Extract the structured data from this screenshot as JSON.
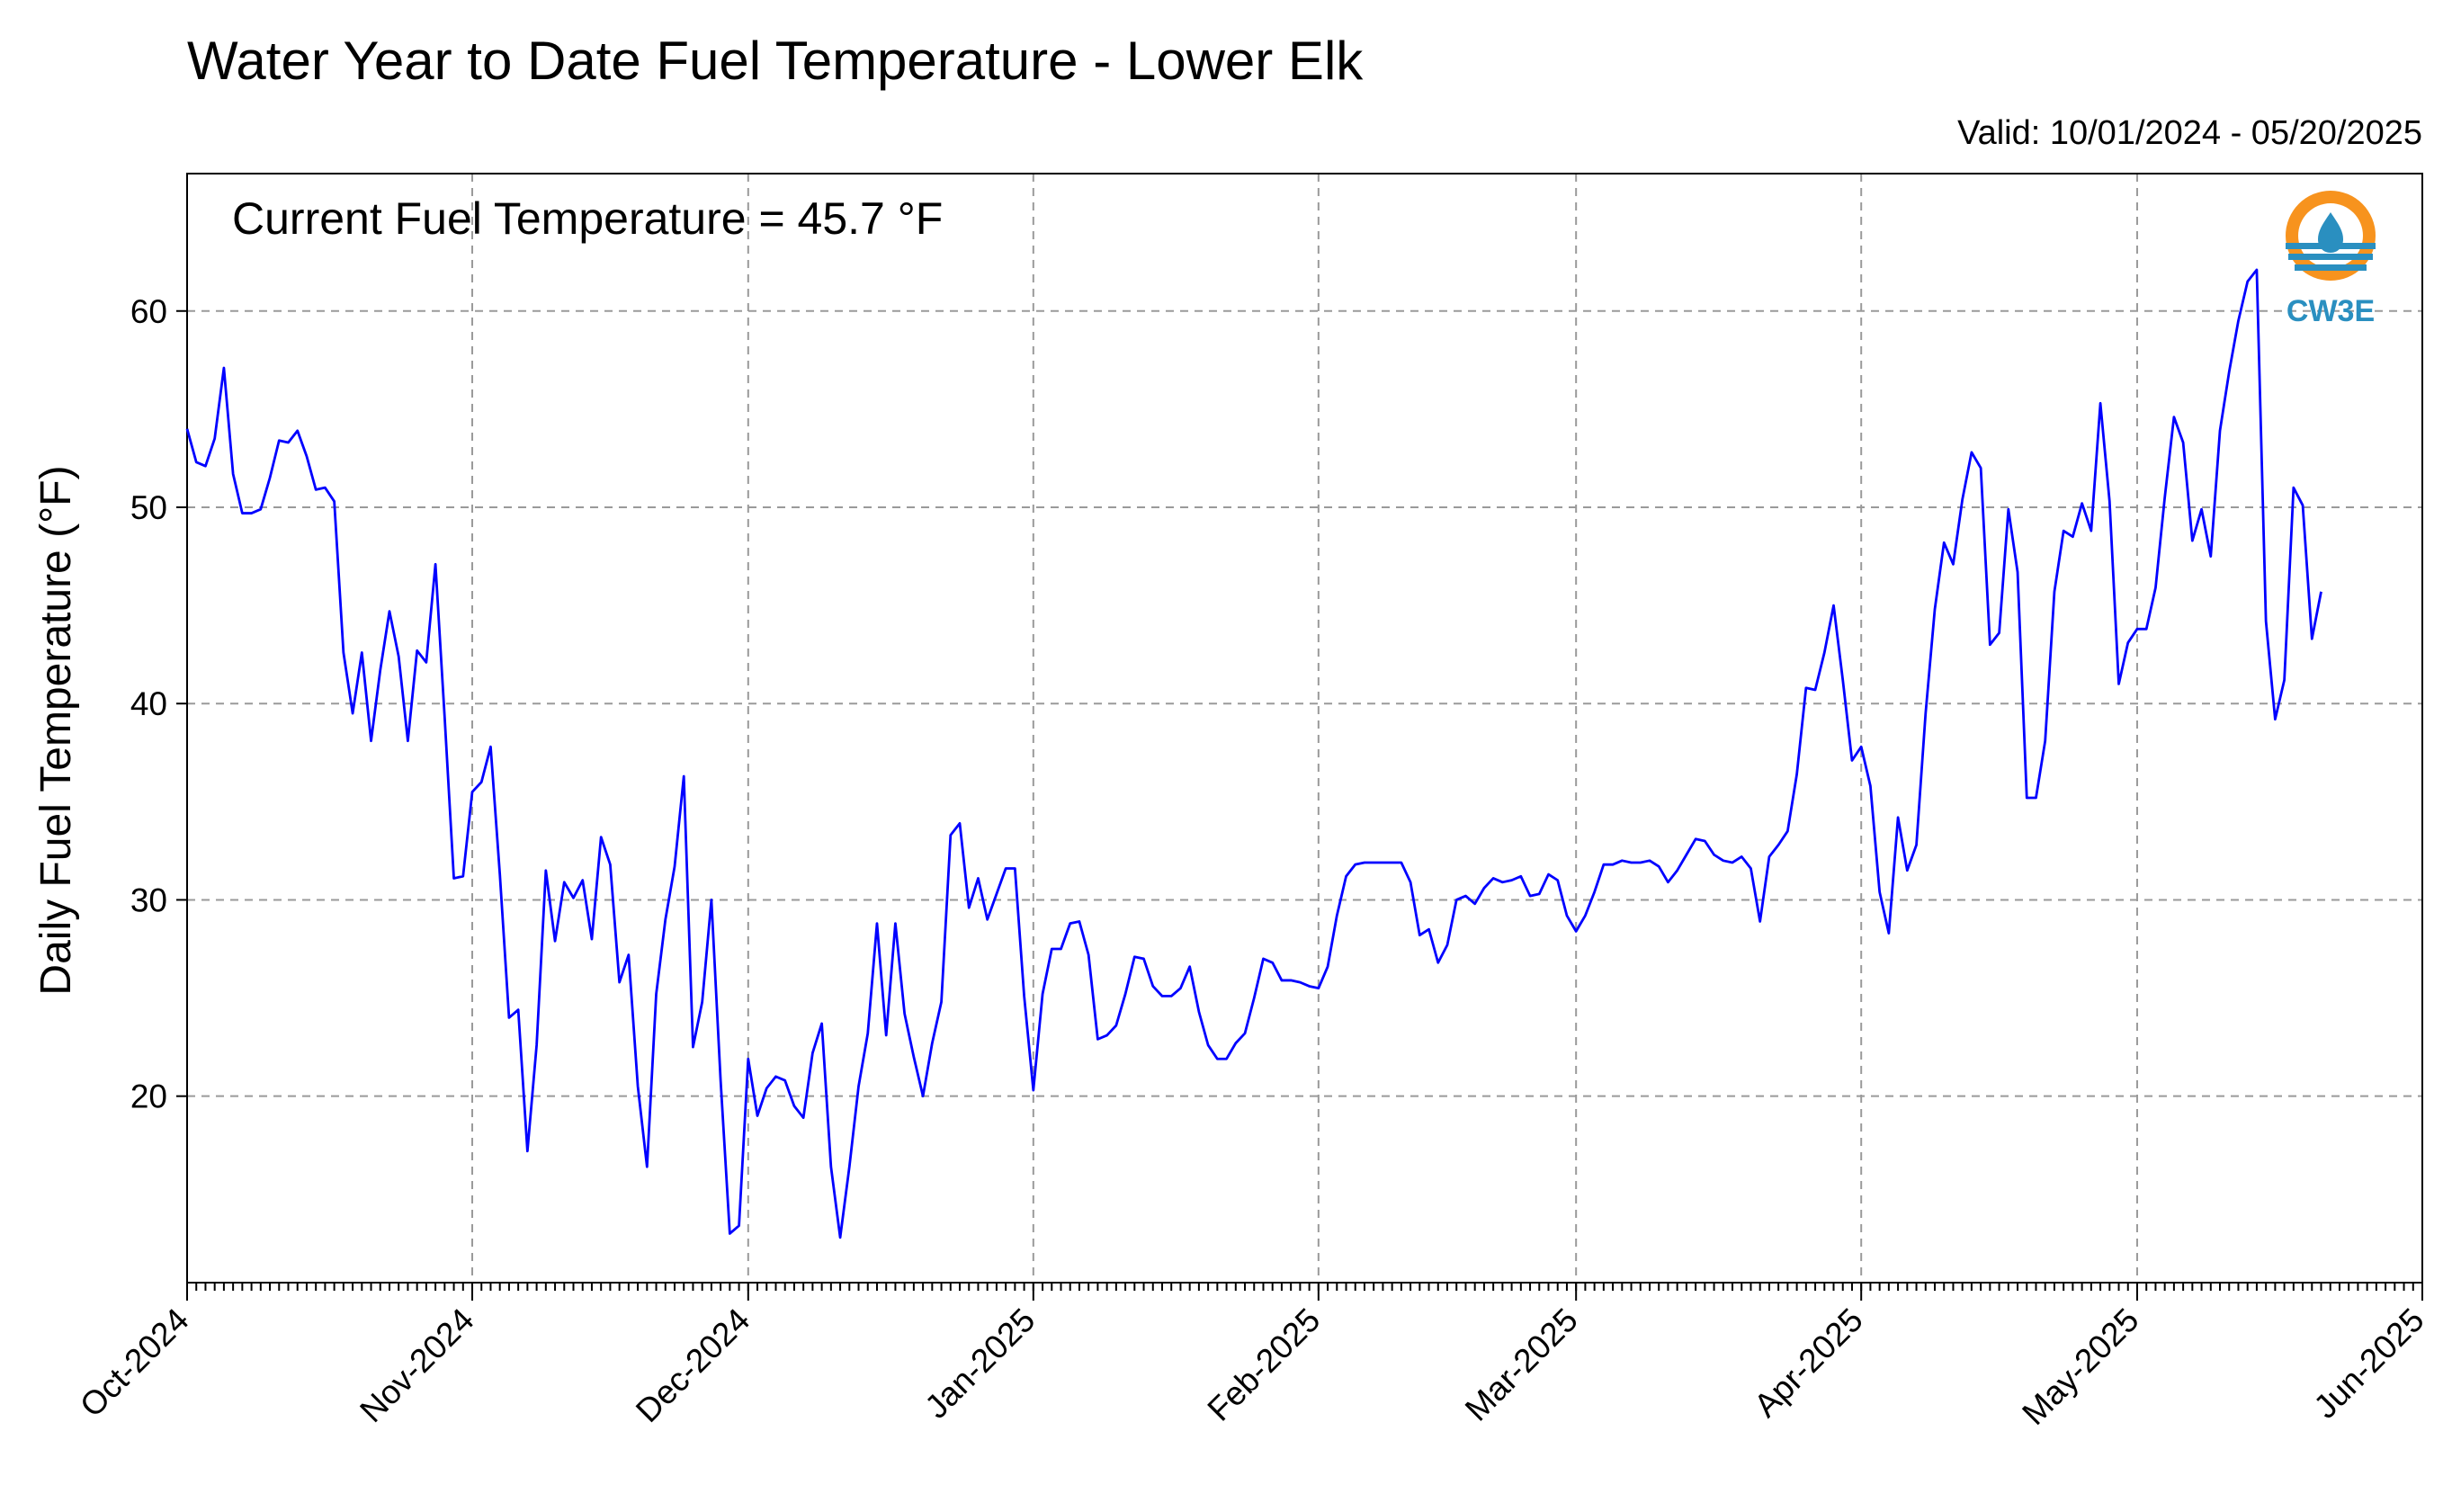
{
  "chart_data": {
    "type": "line",
    "title": "Water Year to Date Fuel Temperature - Lower Elk",
    "valid_label": "Valid: 10/01/2024 - 05/20/2025",
    "ylabel": "Daily Fuel Temperature (°F)",
    "xlabel": "",
    "annotation": "Current Fuel Temperature = 45.7 °F",
    "start_date": "2024-10-01",
    "xlim": [
      "2024-10-01",
      "2025-06-01"
    ],
    "ylim": [
      10.5,
      67
    ],
    "y_ticks": [
      20,
      30,
      40,
      50,
      60
    ],
    "x_ticks": [
      {
        "label": "Oct-2024",
        "date": "2024-10-01"
      },
      {
        "label": "Nov-2024",
        "date": "2024-11-01"
      },
      {
        "label": "Dec-2024",
        "date": "2024-12-01"
      },
      {
        "label": "Jan-2025",
        "date": "2025-01-01"
      },
      {
        "label": "Feb-2025",
        "date": "2025-02-01"
      },
      {
        "label": "Mar-2025",
        "date": "2025-03-01"
      },
      {
        "label": "Apr-2025",
        "date": "2025-04-01"
      },
      {
        "label": "May-2025",
        "date": "2025-05-01"
      },
      {
        "label": "Jun-2025",
        "date": "2025-06-01"
      }
    ],
    "grid": true,
    "line_color": "#0000ff",
    "series": [
      {
        "values": [
          54.0,
          52.3,
          52.1,
          53.5,
          57.1,
          51.7,
          49.7,
          49.7,
          49.9,
          51.5,
          53.4,
          53.3,
          53.9,
          52.6,
          50.9,
          51.0,
          50.3,
          42.6,
          39.5,
          42.6,
          38.1,
          41.7,
          44.7,
          42.4,
          38.1,
          42.7,
          42.1,
          47.1,
          39.3,
          31.1,
          31.2,
          35.5,
          36.0,
          37.8,
          31.3,
          24.0,
          24.4,
          17.2,
          22.6,
          31.5,
          27.9,
          30.9,
          30.1,
          31.0,
          28.0,
          33.2,
          31.8,
          25.8,
          27.2,
          20.5,
          16.4,
          25.2,
          29.0,
          31.7,
          36.3,
          22.5,
          24.8,
          30.0,
          20.8,
          13.0,
          13.4,
          21.9,
          19.0,
          20.4,
          21.0,
          20.8,
          19.5,
          18.9,
          22.2,
          23.7,
          16.4,
          12.8,
          16.4,
          20.5,
          23.2,
          28.8,
          23.1,
          28.8,
          24.2,
          22.0,
          20.0,
          22.7,
          24.8,
          33.3,
          33.9,
          29.6,
          31.1,
          29.0,
          30.3,
          31.6,
          31.6,
          25.1,
          20.3,
          25.2,
          27.5,
          27.5,
          28.8,
          28.9,
          27.2,
          22.9,
          23.1,
          23.6,
          25.2,
          27.1,
          27.0,
          25.6,
          25.1,
          25.1,
          25.5,
          26.6,
          24.3,
          22.6,
          21.9,
          21.9,
          22.7,
          23.2,
          25.0,
          27.0,
          26.8,
          25.9,
          25.9,
          25.8,
          25.6,
          25.5,
          26.6,
          29.2,
          31.2,
          31.8,
          31.9,
          31.9,
          31.9,
          31.9,
          31.9,
          30.9,
          28.2,
          28.5,
          26.8,
          27.7,
          30.0,
          30.2,
          29.8,
          30.6,
          31.1,
          30.9,
          31.0,
          31.2,
          30.2,
          30.3,
          31.3,
          31.0,
          29.2,
          28.4,
          29.2,
          30.4,
          31.8,
          31.8,
          32.0,
          31.9,
          31.9,
          32.0,
          31.7,
          30.9,
          31.5,
          32.3,
          33.1,
          33.0,
          32.3,
          32.0,
          31.9,
          32.2,
          31.6,
          28.9,
          32.2,
          32.8,
          33.5,
          36.4,
          40.8,
          40.7,
          42.6,
          45.0,
          41.2,
          37.1,
          37.8,
          35.8,
          30.4,
          28.3,
          34.2,
          31.5,
          32.8,
          39.5,
          44.8,
          48.2,
          47.1,
          50.4,
          52.8,
          52.0,
          43.0,
          43.6,
          49.9,
          46.7,
          35.2,
          35.2,
          38.1,
          45.7,
          48.8,
          48.5,
          50.2,
          48.8,
          55.3,
          50.3,
          41.0,
          43.1,
          43.8,
          43.8,
          45.9,
          50.5,
          54.6,
          53.3,
          48.3,
          49.9,
          47.5,
          53.9,
          56.9,
          59.5,
          61.5,
          62.1,
          44.2,
          39.2,
          41.2,
          51.0,
          50.1,
          43.3,
          45.7
        ]
      }
    ]
  },
  "logo": {
    "text": "CW3E",
    "ring_color": "#f7931e",
    "wave_color": "#2a8fc0"
  }
}
